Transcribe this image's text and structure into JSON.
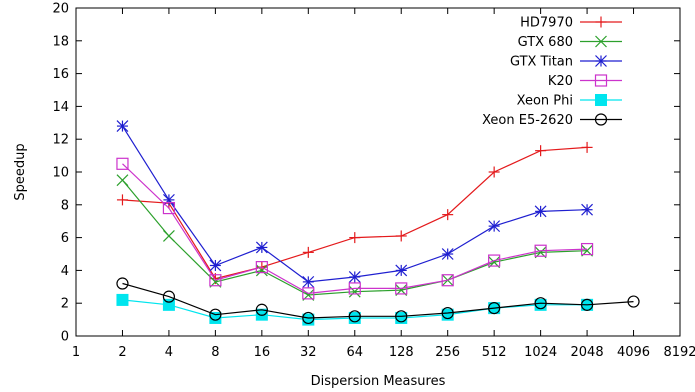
{
  "chart_data": {
    "type": "line",
    "xlabel": "Dispersion Measures",
    "ylabel": "Speedup",
    "x_scale": "log2",
    "xlim": [
      1,
      8192
    ],
    "ylim": [
      0,
      20
    ],
    "x_ticks": [
      "1",
      "2",
      "4",
      "8",
      "16",
      "32",
      "64",
      "128",
      "256",
      "512",
      "1024",
      "2048",
      "4096",
      "8192"
    ],
    "y_ticks": [
      "0",
      "2",
      "4",
      "6",
      "8",
      "10",
      "12",
      "14",
      "16",
      "18",
      "20"
    ],
    "grid": false,
    "legend_position": "top-right",
    "series": [
      {
        "name": "HD7970",
        "color": "#e41a1c",
        "marker": "plus",
        "x": [
          2,
          4,
          8,
          16,
          32,
          64,
          128,
          256,
          512,
          1024,
          2048
        ],
        "values": [
          8.3,
          8.1,
          3.5,
          4.2,
          5.1,
          6.0,
          6.1,
          7.4,
          10.0,
          11.3,
          11.5
        ]
      },
      {
        "name": "GTX 680",
        "color": "#2ca02c",
        "marker": "cross",
        "x": [
          2,
          4,
          8,
          16,
          32,
          64,
          128,
          256,
          512,
          1024,
          2048
        ],
        "values": [
          9.5,
          6.1,
          3.3,
          4.0,
          2.5,
          2.7,
          2.8,
          3.4,
          4.5,
          5.1,
          5.2
        ]
      },
      {
        "name": "GTX Titan",
        "color": "#1f1fd0",
        "marker": "star",
        "x": [
          2,
          4,
          8,
          16,
          32,
          64,
          128,
          256,
          512,
          1024,
          2048
        ],
        "values": [
          12.8,
          8.3,
          4.3,
          5.4,
          3.3,
          3.6,
          4.0,
          5.0,
          6.7,
          7.6,
          7.7
        ]
      },
      {
        "name": "K20",
        "color": "#cc33cc",
        "marker": "open-square",
        "x": [
          2,
          4,
          8,
          16,
          32,
          64,
          128,
          256,
          512,
          1024,
          2048
        ],
        "values": [
          10.5,
          7.8,
          3.4,
          4.2,
          2.6,
          2.9,
          2.9,
          3.4,
          4.6,
          5.2,
          5.3
        ]
      },
      {
        "name": "Xeon Phi",
        "color": "#00e5ee",
        "marker": "filled-square",
        "x": [
          2,
          4,
          8,
          16,
          32,
          64,
          128,
          256,
          512,
          1024,
          2048
        ],
        "values": [
          2.2,
          1.9,
          1.1,
          1.3,
          1.0,
          1.1,
          1.1,
          1.3,
          1.7,
          1.9,
          1.9
        ]
      },
      {
        "name": "Xeon E5-2620",
        "color": "#000000",
        "marker": "open-circle",
        "x": [
          2,
          4,
          8,
          16,
          32,
          64,
          128,
          256,
          512,
          1024,
          2048,
          4096
        ],
        "values": [
          3.2,
          2.4,
          1.3,
          1.6,
          1.1,
          1.2,
          1.2,
          1.4,
          1.7,
          2.0,
          1.9,
          2.1
        ]
      }
    ]
  }
}
